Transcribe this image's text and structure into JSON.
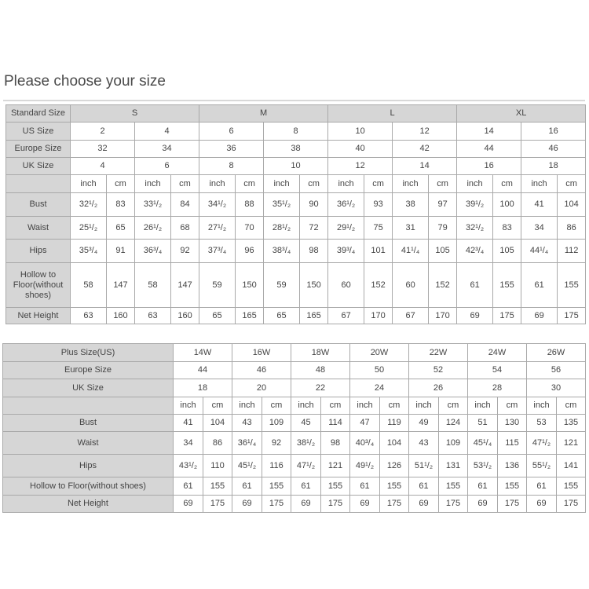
{
  "title": "Please choose your size",
  "standard_table": {
    "header_label": "Standard Size",
    "groups": [
      "S",
      "M",
      "L",
      "XL"
    ],
    "size_rows": [
      {
        "label": "US Size",
        "values": [
          "2",
          "4",
          "6",
          "8",
          "10",
          "12",
          "14",
          "16"
        ]
      },
      {
        "label": "Europe Size",
        "values": [
          "32",
          "34",
          "36",
          "38",
          "40",
          "42",
          "44",
          "46"
        ]
      },
      {
        "label": "UK Size",
        "values": [
          "4",
          "6",
          "8",
          "10",
          "12",
          "14",
          "16",
          "18"
        ]
      }
    ],
    "unit_labels": [
      "inch",
      "cm"
    ],
    "measure_rows": [
      {
        "label": "Bust",
        "values": [
          "32¹/₂",
          "83",
          "33¹/₂",
          "84",
          "34¹/₂",
          "88",
          "35¹/₂",
          "90",
          "36¹/₂",
          "93",
          "38",
          "97",
          "39¹/₂",
          "100",
          "41",
          "104"
        ]
      },
      {
        "label": "Waist",
        "values": [
          "25¹/₂",
          "65",
          "26¹/₂",
          "68",
          "27¹/₂",
          "70",
          "28¹/₂",
          "72",
          "29¹/₂",
          "75",
          "31",
          "79",
          "32¹/₂",
          "83",
          "34",
          "86"
        ]
      },
      {
        "label": "Hips",
        "values": [
          "35³/₄",
          "91",
          "36³/₄",
          "92",
          "37³/₄",
          "96",
          "38³/₄",
          "98",
          "39³/₄",
          "101",
          "41¹/₄",
          "105",
          "42³/₄",
          "105",
          "44¹/₄",
          "112"
        ]
      },
      {
        "label": "Hollow to Floor(without shoes)",
        "values": [
          "58",
          "147",
          "58",
          "147",
          "59",
          "150",
          "59",
          "150",
          "60",
          "152",
          "60",
          "152",
          "61",
          "155",
          "61",
          "155"
        ]
      },
      {
        "label": "Net Height",
        "values": [
          "63",
          "160",
          "63",
          "160",
          "65",
          "165",
          "65",
          "165",
          "67",
          "170",
          "67",
          "170",
          "69",
          "175",
          "69",
          "175"
        ]
      }
    ]
  },
  "plus_table": {
    "size_rows": [
      {
        "label": "Plus Size(US)",
        "values": [
          "14W",
          "16W",
          "18W",
          "20W",
          "22W",
          "24W",
          "26W"
        ]
      },
      {
        "label": "Europe Size",
        "values": [
          "44",
          "46",
          "48",
          "50",
          "52",
          "54",
          "56"
        ]
      },
      {
        "label": "UK Size",
        "values": [
          "18",
          "20",
          "22",
          "24",
          "26",
          "28",
          "30"
        ]
      }
    ],
    "unit_labels": [
      "inch",
      "cm"
    ],
    "measure_rows": [
      {
        "label": "Bust",
        "values": [
          "41",
          "104",
          "43",
          "109",
          "45",
          "114",
          "47",
          "119",
          "49",
          "124",
          "51",
          "130",
          "53",
          "135"
        ]
      },
      {
        "label": "Waist",
        "values": [
          "34",
          "86",
          "36¹/₄",
          "92",
          "38¹/₂",
          "98",
          "40³/₄",
          "104",
          "43",
          "109",
          "45¹/₄",
          "115",
          "47¹/₂",
          "121"
        ]
      },
      {
        "label": "Hips",
        "values": [
          "43¹/₂",
          "110",
          "45¹/₂",
          "116",
          "47¹/₂",
          "121",
          "49¹/₂",
          "126",
          "51¹/₂",
          "131",
          "53¹/₂",
          "136",
          "55¹/₂",
          "141"
        ]
      },
      {
        "label": "Hollow to Floor(without shoes)",
        "values": [
          "61",
          "155",
          "61",
          "155",
          "61",
          "155",
          "61",
          "155",
          "61",
          "155",
          "61",
          "155",
          "61",
          "155"
        ]
      },
      {
        "label": "Net Height",
        "values": [
          "69",
          "175",
          "69",
          "175",
          "69",
          "175",
          "69",
          "175",
          "69",
          "175",
          "69",
          "175",
          "69",
          "175"
        ]
      }
    ]
  }
}
